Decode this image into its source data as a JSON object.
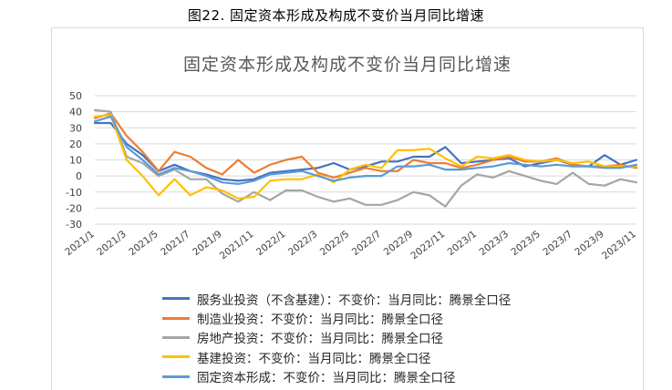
{
  "figure_caption": "图22. 固定资本形成及构成不变价当月同比增速",
  "chart_data": {
    "type": "line",
    "title": "固定资本形成及构成不变价当月同比增速",
    "xlabel": "",
    "ylabel": "",
    "ylim": [
      -30,
      50
    ],
    "yticks": [
      -30,
      -20,
      -10,
      0,
      10,
      20,
      30,
      40,
      50
    ],
    "grid": true,
    "legend_position": "bottom",
    "x": [
      "2021/1",
      "2021/2",
      "2021/3",
      "2021/4",
      "2021/5",
      "2021/6",
      "2021/7",
      "2021/8",
      "2021/9",
      "2021/10",
      "2021/11",
      "2021/12",
      "2022/1",
      "2022/2",
      "2022/3",
      "2022/4",
      "2022/5",
      "2022/6",
      "2022/7",
      "2022/8",
      "2022/9",
      "2022/10",
      "2022/11",
      "2022/12",
      "2023/1",
      "2023/2",
      "2023/3",
      "2023/4",
      "2023/5",
      "2023/6",
      "2023/7",
      "2023/8",
      "2023/9",
      "2023/10",
      "2023/11"
    ],
    "xtick_labels": [
      "2021/1",
      "2021/3",
      "2021/5",
      "2021/7",
      "2021/9",
      "2021/11",
      "2022/1",
      "2022/3",
      "2022/5",
      "2022/7",
      "2022/9",
      "2022/11",
      "2023/1",
      "2023/3",
      "2023/5",
      "2023/7",
      "2023/9",
      "2023/11"
    ],
    "series": [
      {
        "name": "服务业投资（不含基建）：不变价：当月同比：腾景全口径",
        "color": "#4472C4",
        "values": [
          33,
          33,
          20,
          13,
          3,
          7,
          3,
          1,
          -2,
          -3,
          -2,
          2,
          3,
          4,
          5,
          8,
          4,
          6,
          9,
          9,
          12,
          12,
          18,
          8,
          9,
          10,
          11,
          6,
          8,
          10,
          7,
          6,
          13,
          7,
          10
        ]
      },
      {
        "name": "制造业投资：不变价：当月同比：腾景全口径",
        "color": "#ED7D31",
        "values": [
          36,
          39,
          25,
          15,
          3,
          15,
          12,
          5,
          1,
          10,
          2,
          7,
          10,
          12,
          2,
          -1,
          2,
          5,
          3,
          3,
          10,
          8,
          8,
          5,
          7,
          10,
          12,
          9,
          9,
          11,
          7,
          6,
          6,
          7,
          5
        ]
      },
      {
        "name": "房地产投资：不变价：当月同比：腾景全口径",
        "color": "#A5A5A5",
        "values": [
          41,
          40,
          12,
          8,
          0,
          4,
          -2,
          -2,
          -11,
          -16,
          -10,
          -15,
          -9,
          -9,
          -13,
          -16,
          -14,
          -18,
          -18,
          -15,
          -10,
          -12,
          -19,
          -6,
          1,
          -1,
          3,
          0,
          -3,
          -5,
          2,
          -5,
          -6,
          -2,
          -4
        ]
      },
      {
        "name": "基建投资：不变价：当月同比：腾景全口径",
        "color": "#FFC000",
        "values": [
          37,
          38,
          10,
          0,
          -12,
          -2,
          -12,
          -7,
          -9,
          -14,
          -13,
          -3,
          -2,
          -2,
          1,
          -4,
          4,
          7,
          5,
          16,
          16,
          17,
          11,
          6,
          12,
          11,
          13,
          10,
          9,
          10,
          8,
          9,
          6,
          6,
          6
        ]
      },
      {
        "name": "固定资本形成：不变价：当月同比：腾景全口径",
        "color": "#5B9BD5",
        "values": [
          34,
          37,
          18,
          10,
          1,
          5,
          3,
          0,
          -4,
          -5,
          -3,
          1,
          2,
          3,
          0,
          -3,
          -1,
          0,
          0,
          6,
          6,
          7,
          4,
          4,
          5,
          6,
          8,
          7,
          6,
          7,
          6,
          6,
          5,
          5,
          7
        ]
      }
    ]
  }
}
